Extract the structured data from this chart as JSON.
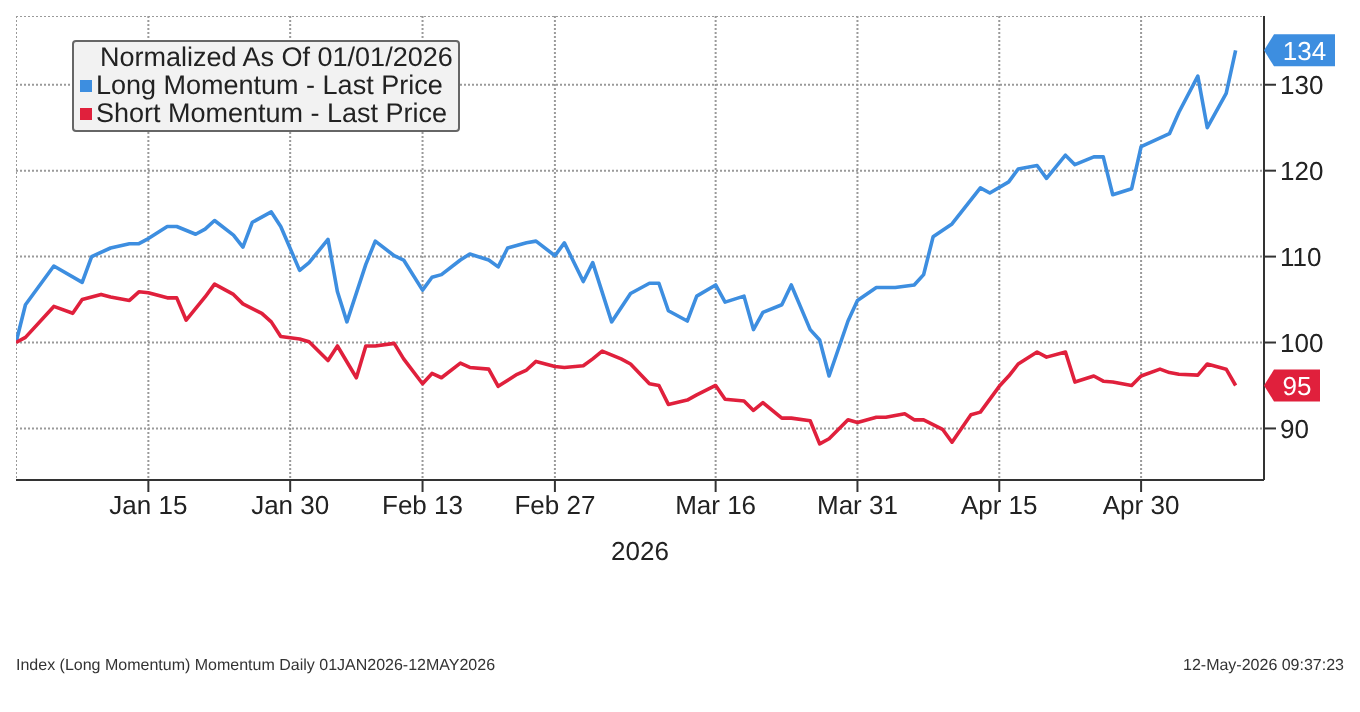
{
  "chart_data": {
    "type": "line",
    "legend_title": "Normalized As Of 01/01/2026",
    "xlabel": "2026",
    "annotations": [
      "Index (Long Momentum) Momentum Daily 01JAN2026-12MAY2026",
      "12-May-2026 09:37:23"
    ],
    "xlim": [
      "2026-01-01",
      "2026-05-13"
    ],
    "xticks": [
      {
        "value": "2026-01-15",
        "label": "Jan 15"
      },
      {
        "value": "2026-01-30",
        "label": "Jan 30"
      },
      {
        "value": "2026-02-13",
        "label": "Feb 13"
      },
      {
        "value": "2026-02-27",
        "label": "Feb 27"
      },
      {
        "value": "2026-03-16",
        "label": "Mar 16"
      },
      {
        "value": "2026-03-31",
        "label": "Mar 31"
      },
      {
        "value": "2026-04-15",
        "label": "Apr 15"
      },
      {
        "value": "2026-04-30",
        "label": "Apr 30"
      }
    ],
    "ylim": [
      84,
      138
    ],
    "yticks": [
      90,
      100,
      110,
      120,
      130
    ],
    "grid": true,
    "legend": "top left",
    "marker": "none",
    "line_style": "solid",
    "series": [
      {
        "name": "Long Momentum - Last Price",
        "color": "#3d8ee0",
        "x": [
          "2026-01-01",
          "2026-01-02",
          "2026-01-05",
          "2026-01-08",
          "2026-01-09",
          "2026-01-11",
          "2026-01-13",
          "2026-01-14",
          "2026-01-15",
          "2026-01-17",
          "2026-01-18",
          "2026-01-20",
          "2026-01-21",
          "2026-01-22",
          "2026-01-24",
          "2026-01-25",
          "2026-01-26",
          "2026-01-28",
          "2026-01-29",
          "2026-01-31",
          "2026-02-01",
          "2026-02-03",
          "2026-02-04",
          "2026-02-05",
          "2026-02-07",
          "2026-02-08",
          "2026-02-10",
          "2026-02-11",
          "2026-02-13",
          "2026-02-14",
          "2026-02-15",
          "2026-02-17",
          "2026-02-18",
          "2026-02-20",
          "2026-02-21",
          "2026-02-22",
          "2026-02-24",
          "2026-02-25",
          "2026-02-27",
          "2026-02-28",
          "2026-03-02",
          "2026-03-03",
          "2026-03-05",
          "2026-03-07",
          "2026-03-09",
          "2026-03-10",
          "2026-03-11",
          "2026-03-13",
          "2026-03-14",
          "2026-03-16",
          "2026-03-17",
          "2026-03-19",
          "2026-03-20",
          "2026-03-21",
          "2026-03-23",
          "2026-03-24",
          "2026-03-26",
          "2026-03-27",
          "2026-03-28",
          "2026-03-30",
          "2026-03-31",
          "2026-04-02",
          "2026-04-04",
          "2026-04-06",
          "2026-04-07",
          "2026-04-08",
          "2026-04-10",
          "2026-04-13",
          "2026-04-14",
          "2026-04-16",
          "2026-04-17",
          "2026-04-19",
          "2026-04-20",
          "2026-04-22",
          "2026-04-23",
          "2026-04-25",
          "2026-04-26",
          "2026-04-27",
          "2026-04-29",
          "2026-04-30",
          "2026-05-03",
          "2026-05-04",
          "2026-05-06",
          "2026-05-07",
          "2026-05-09",
          "2026-05-10"
        ],
        "values": [
          100,
          104.4,
          108.9,
          107,
          110,
          111,
          111.5,
          111.5,
          112.1,
          113.5,
          113.5,
          112.6,
          113.2,
          114.2,
          112.5,
          111.1,
          114,
          115.2,
          113.5,
          108.4,
          109.3,
          112,
          105.9,
          102.4,
          109.1,
          111.8,
          110.1,
          109.6,
          106.1,
          107.6,
          107.9,
          109.6,
          110.3,
          109.6,
          108.8,
          111,
          111.6,
          111.8,
          110.1,
          111.6,
          107.1,
          109.3,
          102.4,
          105.7,
          106.9,
          106.9,
          103.7,
          102.5,
          105.4,
          106.7,
          104.7,
          105.4,
          101.5,
          103.5,
          104.4,
          106.7,
          101.5,
          100.3,
          96.1,
          102.5,
          104.9,
          106.4,
          106.4,
          106.7,
          107.9,
          112.3,
          113.8,
          118,
          117.4,
          118.7,
          120.2,
          120.6,
          119.1,
          121.8,
          120.7,
          121.6,
          121.6,
          117.2,
          117.9,
          122.8,
          124.3,
          126.8,
          131,
          125,
          129,
          134
        ],
        "value_labels": [
          null,
          null,
          null,
          null,
          null,
          null,
          null,
          null,
          null,
          null,
          null,
          null,
          null,
          null,
          null,
          null,
          null,
          null,
          null,
          null,
          null,
          null,
          null,
          null,
          null,
          null,
          null,
          null,
          null,
          null,
          null,
          null,
          null,
          null,
          null,
          null,
          null,
          null,
          null,
          null,
          null,
          null,
          null,
          null,
          null,
          null,
          null,
          null,
          null,
          null,
          null,
          null,
          null,
          null,
          null,
          null,
          null,
          null,
          null,
          null,
          null,
          null,
          null,
          null,
          null,
          null,
          null,
          null,
          null,
          null,
          null,
          null,
          null,
          null,
          null,
          null,
          null,
          null,
          null,
          null,
          null,
          null,
          null,
          null,
          null,
          "134"
        ]
      },
      {
        "name": "Short Momentum - Last Price",
        "color": "#e0203c",
        "x": [
          "2026-01-01",
          "2026-01-02",
          "2026-01-05",
          "2026-01-07",
          "2026-01-08",
          "2026-01-10",
          "2026-01-11",
          "2026-01-13",
          "2026-01-14",
          "2026-01-15",
          "2026-01-17",
          "2026-01-18",
          "2026-01-19",
          "2026-01-21",
          "2026-01-22",
          "2026-01-24",
          "2026-01-25",
          "2026-01-27",
          "2026-01-28",
          "2026-01-29",
          "2026-01-31",
          "2026-02-01",
          "2026-02-03",
          "2026-02-04",
          "2026-02-06",
          "2026-02-07",
          "2026-02-08",
          "2026-02-10",
          "2026-02-11",
          "2026-02-13",
          "2026-02-14",
          "2026-02-15",
          "2026-02-17",
          "2026-02-18",
          "2026-02-20",
          "2026-02-21",
          "2026-02-23",
          "2026-02-24",
          "2026-02-25",
          "2026-02-27",
          "2026-02-28",
          "2026-03-02",
          "2026-03-03",
          "2026-03-04",
          "2026-03-06",
          "2026-03-07",
          "2026-03-09",
          "2026-03-10",
          "2026-03-11",
          "2026-03-13",
          "2026-03-14",
          "2026-03-16",
          "2026-03-17",
          "2026-03-19",
          "2026-03-20",
          "2026-03-21",
          "2026-03-23",
          "2026-03-24",
          "2026-03-26",
          "2026-03-27",
          "2026-03-28",
          "2026-03-30",
          "2026-03-31",
          "2026-04-02",
          "2026-04-03",
          "2026-04-05",
          "2026-04-06",
          "2026-04-07",
          "2026-04-09",
          "2026-04-10",
          "2026-04-12",
          "2026-04-13",
          "2026-04-15",
          "2026-04-16",
          "2026-04-17",
          "2026-04-19",
          "2026-04-20",
          "2026-04-22",
          "2026-04-23",
          "2026-04-25",
          "2026-04-26",
          "2026-04-27",
          "2026-04-29",
          "2026-04-30",
          "2026-05-02",
          "2026-05-03",
          "2026-05-04",
          "2026-05-06",
          "2026-05-07",
          "2026-05-09",
          "2026-05-10"
        ],
        "values": [
          100,
          100.6,
          104.2,
          103.4,
          105,
          105.6,
          105.3,
          104.9,
          105.9,
          105.8,
          105.2,
          105.2,
          102.6,
          105.3,
          106.8,
          105.6,
          104.5,
          103.4,
          102.4,
          100.7,
          100.4,
          100.1,
          97.9,
          99.6,
          95.9,
          99.6,
          99.6,
          99.9,
          98.1,
          95.2,
          96.4,
          95.9,
          97.6,
          97.1,
          96.9,
          94.9,
          96.3,
          96.8,
          97.8,
          97.2,
          97.1,
          97.3,
          98.1,
          99,
          98.1,
          97.5,
          95.2,
          95,
          92.8,
          93.3,
          93.9,
          95,
          93.4,
          93.2,
          92.1,
          93,
          91.2,
          91.2,
          90.9,
          88.2,
          88.8,
          91,
          90.7,
          91.3,
          91.3,
          91.7,
          91,
          91,
          89.9,
          88.4,
          91.6,
          91.9,
          94.9,
          96.1,
          97.5,
          98.9,
          98.3,
          98.9,
          95.4,
          96.1,
          95.5,
          95.4,
          95,
          96.1,
          96.9,
          96.5,
          96.3,
          96.2,
          97.5,
          96.9,
          95
        ],
        "value_labels": [
          null,
          null,
          null,
          null,
          null,
          null,
          null,
          null,
          null,
          null,
          null,
          null,
          null,
          null,
          null,
          null,
          null,
          null,
          null,
          null,
          null,
          null,
          null,
          null,
          null,
          null,
          null,
          null,
          null,
          null,
          null,
          null,
          null,
          null,
          null,
          null,
          null,
          null,
          null,
          null,
          null,
          null,
          null,
          null,
          null,
          null,
          null,
          null,
          null,
          null,
          null,
          null,
          null,
          null,
          null,
          null,
          null,
          null,
          null,
          null,
          null,
          null,
          null,
          null,
          null,
          null,
          null,
          null,
          null,
          null,
          null,
          null,
          null,
          null,
          null,
          null,
          null,
          null,
          null,
          null,
          null,
          null,
          null,
          null,
          null,
          null,
          null,
          null,
          null,
          null,
          "95"
        ]
      }
    ]
  }
}
